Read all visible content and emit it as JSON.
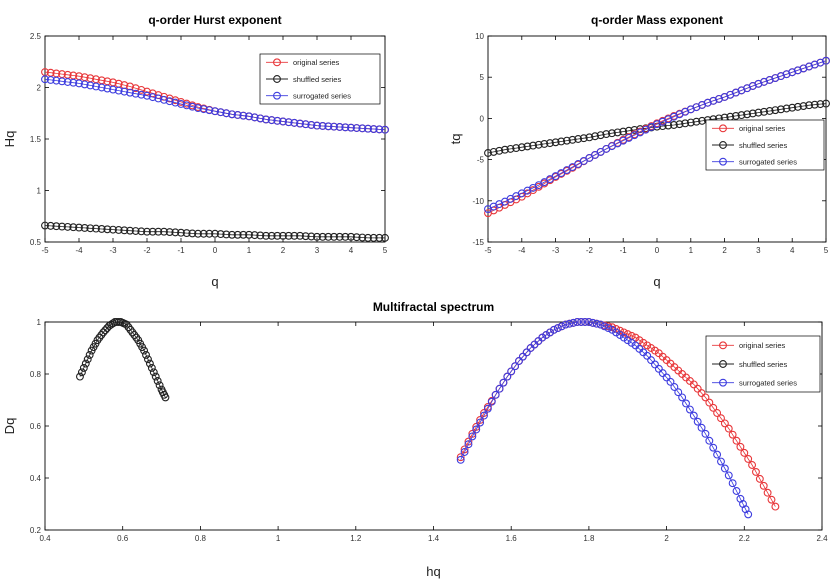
{
  "colors": {
    "original": "#e8373a",
    "shuffled": "#222222",
    "surrogated": "#3d3ddf",
    "axis": "#000000"
  },
  "chart_data": [
    {
      "type": "scatter",
      "title": "q-order Hurst exponent",
      "xlabel": "q",
      "ylabel": "Hq",
      "xlim": [
        -5,
        5
      ],
      "ylim": [
        0.5,
        2.5
      ],
      "xticks": [
        "-5",
        "-4",
        "-3",
        "-2",
        "-1",
        "0",
        "1",
        "2",
        "3",
        "4",
        "5"
      ],
      "yticks": [
        "0.5",
        "1",
        "1.5",
        "2",
        "2.5"
      ],
      "legend_position": "top-right",
      "legend": [
        "original series",
        "shuffled series",
        "surrogated series"
      ],
      "x": [
        -5,
        -4.5,
        -4,
        -3.5,
        -3,
        -2.5,
        -2,
        -1.5,
        -1,
        -0.5,
        0,
        0.5,
        1,
        1.5,
        2,
        2.5,
        3,
        3.5,
        4,
        4.5,
        5
      ],
      "series": [
        {
          "name": "original series",
          "color_key": "original",
          "values": [
            2.15,
            2.13,
            2.11,
            2.08,
            2.05,
            2.01,
            1.96,
            1.91,
            1.86,
            1.81,
            1.77,
            1.74,
            1.72,
            1.69,
            1.67,
            1.65,
            1.63,
            1.62,
            1.61,
            1.6,
            1.59
          ]
        },
        {
          "name": "shuffled series",
          "color_key": "shuffled",
          "values": [
            0.66,
            0.65,
            0.64,
            0.63,
            0.62,
            0.61,
            0.6,
            0.6,
            0.59,
            0.58,
            0.58,
            0.57,
            0.57,
            0.56,
            0.56,
            0.56,
            0.55,
            0.55,
            0.55,
            0.54,
            0.54
          ]
        },
        {
          "name": "surrogated series",
          "color_key": "surrogated",
          "values": [
            2.08,
            2.06,
            2.04,
            2.01,
            1.98,
            1.95,
            1.92,
            1.88,
            1.84,
            1.8,
            1.77,
            1.74,
            1.72,
            1.69,
            1.67,
            1.65,
            1.63,
            1.62,
            1.61,
            1.6,
            1.59
          ]
        }
      ]
    },
    {
      "type": "scatter",
      "title": "q-order Mass exponent",
      "xlabel": "q",
      "ylabel": "tq",
      "xlim": [
        -5,
        5
      ],
      "ylim": [
        -15,
        10
      ],
      "xticks": [
        "-5",
        "-4",
        "-3",
        "-2",
        "-1",
        "0",
        "1",
        "2",
        "3",
        "4",
        "5"
      ],
      "yticks": [
        "-15",
        "-10",
        "-5",
        "0",
        "5",
        "10"
      ],
      "legend_position": "right",
      "legend": [
        "original series",
        "shuffled series",
        "surrogated series"
      ],
      "x": [
        -5,
        -4.5,
        -4,
        -3.5,
        -3,
        -2.5,
        -2,
        -1.5,
        -1,
        -0.5,
        0,
        0.5,
        1,
        1.5,
        2,
        2.5,
        3,
        3.5,
        4,
        4.5,
        5
      ],
      "series": [
        {
          "name": "original series",
          "color_key": "original",
          "values": [
            -11.5,
            -10.5,
            -9.5,
            -8.3,
            -7.1,
            -6.0,
            -4.8,
            -3.7,
            -2.6,
            -1.6,
            -0.6,
            0.3,
            1.1,
            1.9,
            2.6,
            3.4,
            4.2,
            4.9,
            5.6,
            6.3,
            7.0
          ]
        },
        {
          "name": "shuffled series",
          "color_key": "shuffled",
          "values": [
            -4.2,
            -3.8,
            -3.5,
            -3.2,
            -2.9,
            -2.6,
            -2.3,
            -1.9,
            -1.6,
            -1.3,
            -1.0,
            -0.8,
            -0.5,
            -0.2,
            0.1,
            0.4,
            0.7,
            1.0,
            1.3,
            1.6,
            1.8
          ]
        },
        {
          "name": "surrogated series",
          "color_key": "surrogated",
          "values": [
            -11.0,
            -10.1,
            -9.1,
            -8.1,
            -7.0,
            -5.9,
            -4.8,
            -3.7,
            -2.7,
            -1.7,
            -0.7,
            0.2,
            1.1,
            1.9,
            2.6,
            3.4,
            4.2,
            4.9,
            5.6,
            6.3,
            7.0
          ]
        }
      ]
    },
    {
      "type": "scatter",
      "title": "Multifractal spectrum",
      "xlabel": "hq",
      "ylabel": "Dq",
      "xlim": [
        0.4,
        2.4
      ],
      "ylim": [
        0.2,
        1.0
      ],
      "xticks": [
        "0.4",
        "0.6",
        "0.8",
        "1",
        "1.2",
        "1.4",
        "1.6",
        "1.8",
        "2",
        "2.2",
        "2.4"
      ],
      "yticks": [
        "0.2",
        "0.4",
        "0.6",
        "0.8",
        "1"
      ],
      "legend_position": "right",
      "legend": [
        "original series",
        "shuffled series",
        "surrogated series"
      ],
      "series": [
        {
          "name": "original series",
          "color_key": "original",
          "x": [
            1.47,
            1.5,
            1.53,
            1.56,
            1.59,
            1.62,
            1.65,
            1.68,
            1.71,
            1.74,
            1.77,
            1.8,
            1.83,
            1.86,
            1.89,
            1.92,
            1.95,
            1.98,
            2.01,
            2.04,
            2.07,
            2.1,
            2.13,
            2.16,
            2.19,
            2.22,
            2.25,
            2.28
          ],
          "y": [
            0.48,
            0.57,
            0.65,
            0.72,
            0.79,
            0.85,
            0.9,
            0.94,
            0.97,
            0.99,
            1.0,
            1.0,
            0.99,
            0.98,
            0.96,
            0.94,
            0.91,
            0.88,
            0.84,
            0.8,
            0.76,
            0.71,
            0.65,
            0.59,
            0.52,
            0.45,
            0.37,
            0.29
          ]
        },
        {
          "name": "shuffled series",
          "color_key": "shuffled",
          "x": [
            0.49,
            0.505,
            0.52,
            0.535,
            0.55,
            0.565,
            0.58,
            0.595,
            0.61,
            0.625,
            0.64,
            0.655,
            0.67,
            0.685,
            0.7,
            0.71
          ],
          "y": [
            0.79,
            0.84,
            0.89,
            0.93,
            0.96,
            0.985,
            1.0,
            1.0,
            0.99,
            0.96,
            0.93,
            0.89,
            0.84,
            0.79,
            0.74,
            0.71
          ]
        },
        {
          "name": "surrogated series",
          "color_key": "surrogated",
          "x": [
            1.47,
            1.5,
            1.53,
            1.56,
            1.59,
            1.62,
            1.65,
            1.68,
            1.71,
            1.74,
            1.77,
            1.8,
            1.83,
            1.86,
            1.89,
            1.92,
            1.95,
            1.98,
            2.01,
            2.04,
            2.07,
            2.1,
            2.13,
            2.16,
            2.19,
            2.21
          ],
          "y": [
            0.47,
            0.56,
            0.64,
            0.72,
            0.79,
            0.85,
            0.9,
            0.94,
            0.97,
            0.99,
            1.0,
            1.0,
            0.99,
            0.97,
            0.94,
            0.91,
            0.87,
            0.82,
            0.77,
            0.71,
            0.64,
            0.57,
            0.49,
            0.41,
            0.32,
            0.26
          ]
        }
      ]
    }
  ]
}
